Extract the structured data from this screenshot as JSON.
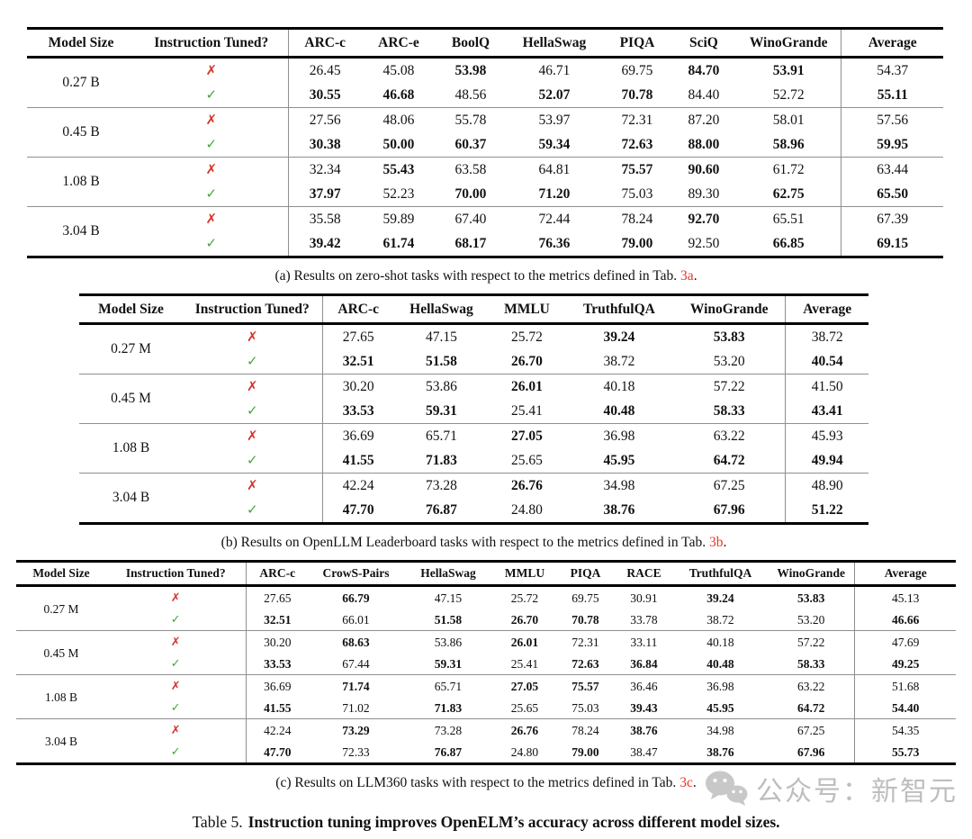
{
  "colors": {
    "ref_red": "#e8362a",
    "cross_red": "#d5342c",
    "check_green": "#3fa83d",
    "watermark_gray": "#b9b9b9",
    "rule_gray": "#8f8f8f"
  },
  "marks": {
    "cross": "✗",
    "check": "✓"
  },
  "tables": [
    {
      "id": "a",
      "columns": [
        "Model Size",
        "Instruction Tuned?",
        "ARC-c",
        "ARC-e",
        "BoolQ",
        "HellaSwag",
        "PIQA",
        "SciQ",
        "WinoGrande",
        "Average"
      ],
      "groups": [
        {
          "size": "0.27 B",
          "rows": [
            {
              "mark": "cross",
              "values": [
                "26.45",
                "45.08",
                "53.98",
                "46.71",
                "69.75",
                "84.70",
                "53.91",
                "54.37"
              ],
              "bold": [
                false,
                false,
                true,
                false,
                false,
                true,
                true,
                false
              ]
            },
            {
              "mark": "check",
              "values": [
                "30.55",
                "46.68",
                "48.56",
                "52.07",
                "70.78",
                "84.40",
                "52.72",
                "55.11"
              ],
              "bold": [
                true,
                true,
                false,
                true,
                true,
                false,
                false,
                true
              ]
            }
          ]
        },
        {
          "size": "0.45 B",
          "rows": [
            {
              "mark": "cross",
              "values": [
                "27.56",
                "48.06",
                "55.78",
                "53.97",
                "72.31",
                "87.20",
                "58.01",
                "57.56"
              ],
              "bold": [
                false,
                false,
                false,
                false,
                false,
                false,
                false,
                false
              ]
            },
            {
              "mark": "check",
              "values": [
                "30.38",
                "50.00",
                "60.37",
                "59.34",
                "72.63",
                "88.00",
                "58.96",
                "59.95"
              ],
              "bold": [
                true,
                true,
                true,
                true,
                true,
                true,
                true,
                true
              ]
            }
          ]
        },
        {
          "size": "1.08 B",
          "rows": [
            {
              "mark": "cross",
              "values": [
                "32.34",
                "55.43",
                "63.58",
                "64.81",
                "75.57",
                "90.60",
                "61.72",
                "63.44"
              ],
              "bold": [
                false,
                true,
                false,
                false,
                true,
                true,
                false,
                false
              ]
            },
            {
              "mark": "check",
              "values": [
                "37.97",
                "52.23",
                "70.00",
                "71.20",
                "75.03",
                "89.30",
                "62.75",
                "65.50"
              ],
              "bold": [
                true,
                false,
                true,
                true,
                false,
                false,
                true,
                true
              ]
            }
          ]
        },
        {
          "size": "3.04 B",
          "rows": [
            {
              "mark": "cross",
              "values": [
                "35.58",
                "59.89",
                "67.40",
                "72.44",
                "78.24",
                "92.70",
                "65.51",
                "67.39"
              ],
              "bold": [
                false,
                false,
                false,
                false,
                false,
                true,
                false,
                false
              ]
            },
            {
              "mark": "check",
              "values": [
                "39.42",
                "61.74",
                "68.17",
                "76.36",
                "79.00",
                "92.50",
                "66.85",
                "69.15"
              ],
              "bold": [
                true,
                true,
                true,
                true,
                true,
                false,
                true,
                true
              ]
            }
          ]
        }
      ],
      "caption_prefix": "(a) Results on zero-shot tasks with respect to the metrics defined in Tab. ",
      "caption_link": "3a",
      "caption_suffix": "."
    },
    {
      "id": "b",
      "columns": [
        "Model Size",
        "Instruction Tuned?",
        "ARC-c",
        "HellaSwag",
        "MMLU",
        "TruthfulQA",
        "WinoGrande",
        "Average"
      ],
      "groups": [
        {
          "size": "0.27 M",
          "rows": [
            {
              "mark": "cross",
              "values": [
                "27.65",
                "47.15",
                "25.72",
                "39.24",
                "53.83",
                "38.72"
              ],
              "bold": [
                false,
                false,
                false,
                true,
                true,
                false
              ]
            },
            {
              "mark": "check",
              "values": [
                "32.51",
                "51.58",
                "26.70",
                "38.72",
                "53.20",
                "40.54"
              ],
              "bold": [
                true,
                true,
                true,
                false,
                false,
                true
              ]
            }
          ]
        },
        {
          "size": "0.45 M",
          "rows": [
            {
              "mark": "cross",
              "values": [
                "30.20",
                "53.86",
                "26.01",
                "40.18",
                "57.22",
                "41.50"
              ],
              "bold": [
                false,
                false,
                true,
                false,
                false,
                false
              ]
            },
            {
              "mark": "check",
              "values": [
                "33.53",
                "59.31",
                "25.41",
                "40.48",
                "58.33",
                "43.41"
              ],
              "bold": [
                true,
                true,
                false,
                true,
                true,
                true
              ]
            }
          ]
        },
        {
          "size": "1.08 B",
          "rows": [
            {
              "mark": "cross",
              "values": [
                "36.69",
                "65.71",
                "27.05",
                "36.98",
                "63.22",
                "45.93"
              ],
              "bold": [
                false,
                false,
                true,
                false,
                false,
                false
              ]
            },
            {
              "mark": "check",
              "values": [
                "41.55",
                "71.83",
                "25.65",
                "45.95",
                "64.72",
                "49.94"
              ],
              "bold": [
                true,
                true,
                false,
                true,
                true,
                true
              ]
            }
          ]
        },
        {
          "size": "3.04 B",
          "rows": [
            {
              "mark": "cross",
              "values": [
                "42.24",
                "73.28",
                "26.76",
                "34.98",
                "67.25",
                "48.90"
              ],
              "bold": [
                false,
                false,
                true,
                false,
                false,
                false
              ]
            },
            {
              "mark": "check",
              "values": [
                "47.70",
                "76.87",
                "24.80",
                "38.76",
                "67.96",
                "51.22"
              ],
              "bold": [
                true,
                true,
                false,
                true,
                true,
                true
              ]
            }
          ]
        }
      ],
      "caption_prefix": "(b) Results on OpenLLM Leaderboard tasks with respect to the metrics defined in Tab. ",
      "caption_link": "3b",
      "caption_suffix": "."
    },
    {
      "id": "c",
      "columns": [
        "Model Size",
        "Instruction Tuned?",
        "ARC-c",
        "CrowS-Pairs",
        "HellaSwag",
        "MMLU",
        "PIQA",
        "RACE",
        "TruthfulQA",
        "WinoGrande",
        "Average"
      ],
      "groups": [
        {
          "size": "0.27 M",
          "rows": [
            {
              "mark": "cross",
              "values": [
                "27.65",
                "66.79",
                "47.15",
                "25.72",
                "69.75",
                "30.91",
                "39.24",
                "53.83",
                "45.13"
              ],
              "bold": [
                false,
                true,
                false,
                false,
                false,
                false,
                true,
                true,
                false
              ]
            },
            {
              "mark": "check",
              "values": [
                "32.51",
                "66.01",
                "51.58",
                "26.70",
                "70.78",
                "33.78",
                "38.72",
                "53.20",
                "46.66"
              ],
              "bold": [
                true,
                false,
                true,
                true,
                true,
                false,
                false,
                false,
                true
              ]
            }
          ]
        },
        {
          "size": "0.45 M",
          "rows": [
            {
              "mark": "cross",
              "values": [
                "30.20",
                "68.63",
                "53.86",
                "26.01",
                "72.31",
                "33.11",
                "40.18",
                "57.22",
                "47.69"
              ],
              "bold": [
                false,
                true,
                false,
                true,
                false,
                false,
                false,
                false,
                false
              ]
            },
            {
              "mark": "check",
              "values": [
                "33.53",
                "67.44",
                "59.31",
                "25.41",
                "72.63",
                "36.84",
                "40.48",
                "58.33",
                "49.25"
              ],
              "bold": [
                true,
                false,
                true,
                false,
                true,
                true,
                true,
                true,
                true
              ]
            }
          ]
        },
        {
          "size": "1.08 B",
          "rows": [
            {
              "mark": "cross",
              "values": [
                "36.69",
                "71.74",
                "65.71",
                "27.05",
                "75.57",
                "36.46",
                "36.98",
                "63.22",
                "51.68"
              ],
              "bold": [
                false,
                true,
                false,
                true,
                true,
                false,
                false,
                false,
                false
              ]
            },
            {
              "mark": "check",
              "values": [
                "41.55",
                "71.02",
                "71.83",
                "25.65",
                "75.03",
                "39.43",
                "45.95",
                "64.72",
                "54.40"
              ],
              "bold": [
                true,
                false,
                true,
                false,
                false,
                true,
                true,
                true,
                true
              ]
            }
          ]
        },
        {
          "size": "3.04 B",
          "rows": [
            {
              "mark": "cross",
              "values": [
                "42.24",
                "73.29",
                "73.28",
                "26.76",
                "78.24",
                "38.76",
                "34.98",
                "67.25",
                "54.35"
              ],
              "bold": [
                false,
                true,
                false,
                true,
                false,
                true,
                false,
                false,
                false
              ]
            },
            {
              "mark": "check",
              "values": [
                "47.70",
                "72.33",
                "76.87",
                "24.80",
                "79.00",
                "38.47",
                "38.76",
                "67.96",
                "55.73"
              ],
              "bold": [
                true,
                false,
                true,
                false,
                true,
                false,
                true,
                true,
                true
              ]
            }
          ]
        }
      ],
      "caption_prefix": "(c) Results on LLM360 tasks with respect to the metrics defined in Tab. ",
      "caption_link": "3c",
      "caption_suffix": "."
    }
  ],
  "footer": {
    "label": "Table 5.",
    "text": "Instruction tuning improves OpenELM’s accuracy across different model sizes."
  },
  "watermark": {
    "icon": "wechat-icon",
    "text": "公众号：新智元"
  }
}
